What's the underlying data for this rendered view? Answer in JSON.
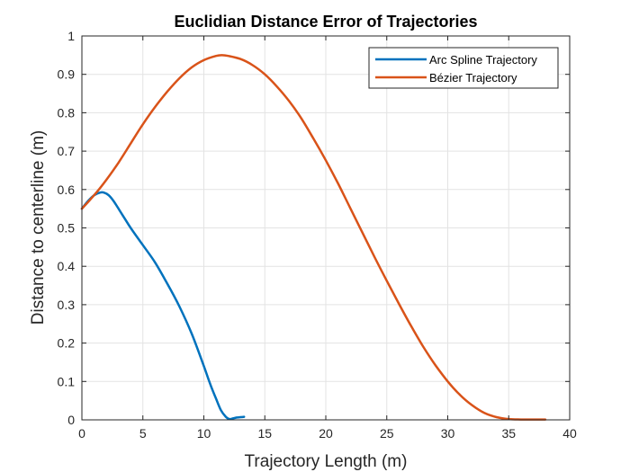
{
  "chart_data": {
    "type": "line",
    "title": "Euclidian Distance Error of Trajectories",
    "xlabel": "Trajectory Length (m)",
    "ylabel": "Distance to centerline (m)",
    "xlim": [
      0,
      40
    ],
    "ylim": [
      0,
      1
    ],
    "xticks": [
      0,
      5,
      10,
      15,
      20,
      25,
      30,
      35,
      40
    ],
    "yticks": [
      0,
      0.1,
      0.2,
      0.3,
      0.4,
      0.5,
      0.6,
      0.7,
      0.8,
      0.9,
      1
    ],
    "grid": true,
    "legend_position": "top-right",
    "series": [
      {
        "name": "Arc Spline Trajectory",
        "color": "#0072BD",
        "x": [
          0,
          0.5,
          1.0,
          1.5,
          1.8,
          2.2,
          2.6,
          3.0,
          3.5,
          4.0,
          5.0,
          6.0,
          7.0,
          8.0,
          9.0,
          10.0,
          10.5,
          11.0,
          11.4,
          11.8,
          12.1,
          12.4,
          12.7,
          13.0,
          13.3
        ],
        "y": [
          0.55,
          0.57,
          0.585,
          0.592,
          0.592,
          0.585,
          0.57,
          0.55,
          0.525,
          0.5,
          0.455,
          0.41,
          0.355,
          0.295,
          0.225,
          0.14,
          0.095,
          0.055,
          0.025,
          0.008,
          0.002,
          0.004,
          0.006,
          0.007,
          0.008
        ]
      },
      {
        "name": "Bézier Trajectory",
        "color": "#D95319",
        "x": [
          0,
          1,
          2,
          3,
          4,
          5,
          6,
          7,
          8,
          9,
          10,
          11,
          11.5,
          12,
          13,
          14,
          15,
          16,
          17,
          18,
          19,
          20,
          21,
          22,
          23,
          24,
          25,
          26,
          27,
          28,
          29,
          30,
          31,
          32,
          33,
          34,
          35,
          36,
          37,
          38
        ],
        "y": [
          0.55,
          0.585,
          0.625,
          0.67,
          0.72,
          0.77,
          0.815,
          0.855,
          0.89,
          0.918,
          0.937,
          0.948,
          0.95,
          0.948,
          0.94,
          0.924,
          0.9,
          0.868,
          0.83,
          0.785,
          0.732,
          0.676,
          0.616,
          0.552,
          0.488,
          0.424,
          0.362,
          0.302,
          0.244,
          0.19,
          0.142,
          0.1,
          0.065,
          0.038,
          0.018,
          0.007,
          0.002,
          0.001,
          0.001,
          0.001
        ]
      }
    ]
  }
}
